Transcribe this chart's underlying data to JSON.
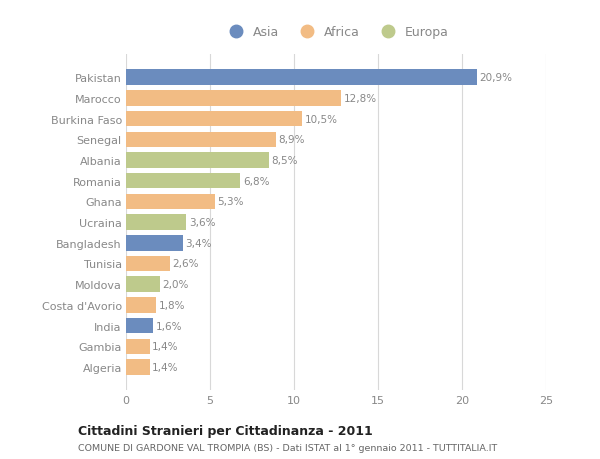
{
  "categories": [
    "Algeria",
    "Gambia",
    "India",
    "Costa d'Avorio",
    "Moldova",
    "Tunisia",
    "Bangladesh",
    "Ucraina",
    "Ghana",
    "Romania",
    "Albania",
    "Senegal",
    "Burkina Faso",
    "Marocco",
    "Pakistan"
  ],
  "values": [
    1.4,
    1.4,
    1.6,
    1.8,
    2.0,
    2.6,
    3.4,
    3.6,
    5.3,
    6.8,
    8.5,
    8.9,
    10.5,
    12.8,
    20.9
  ],
  "continents": [
    "Africa",
    "Africa",
    "Asia",
    "Africa",
    "Europa",
    "Africa",
    "Asia",
    "Europa",
    "Africa",
    "Europa",
    "Europa",
    "Africa",
    "Africa",
    "Africa",
    "Asia"
  ],
  "labels": [
    "1,4%",
    "1,4%",
    "1,6%",
    "1,8%",
    "2,0%",
    "2,6%",
    "3,4%",
    "3,6%",
    "5,3%",
    "6,8%",
    "8,5%",
    "8,9%",
    "10,5%",
    "12,8%",
    "20,9%"
  ],
  "colors": {
    "Asia": "#6b8cbe",
    "Africa": "#f2bc84",
    "Europa": "#beca8c"
  },
  "xlim": [
    0,
    25
  ],
  "xticks": [
    0,
    5,
    10,
    15,
    20,
    25
  ],
  "title": "Cittadini Stranieri per Cittadinanza - 2011",
  "subtitle": "COMUNE DI GARDONE VAL TROMPIA (BS) - Dati ISTAT al 1° gennaio 2011 - TUTTITALIA.IT",
  "bg_color": "#ffffff",
  "plot_bg_color": "#ffffff",
  "bar_height": 0.75,
  "grid_color": "#d8d8d8",
  "text_color": "#888888",
  "label_color": "#888888",
  "title_color": "#222222",
  "subtitle_color": "#666666"
}
